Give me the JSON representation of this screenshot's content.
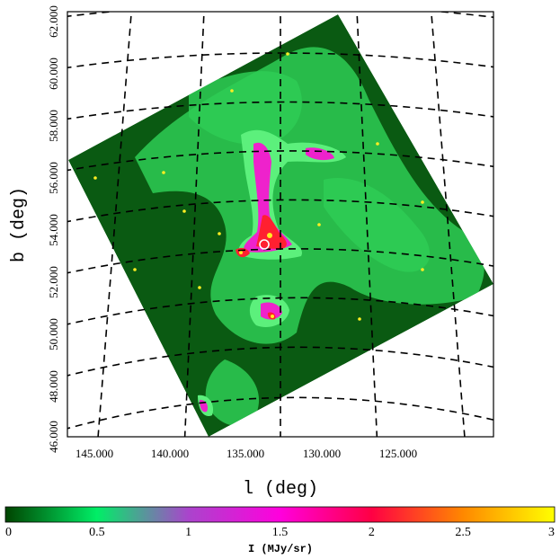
{
  "chart_data": {
    "type": "heatmap",
    "xlabel": "l (deg)",
    "ylabel": "b (deg)",
    "x_ticks": [
      "145.000",
      "140.000",
      "135.000",
      "130.000",
      "125.000"
    ],
    "y_ticks": [
      "46.000",
      "48.000",
      "50.000",
      "52.000",
      "54.000",
      "56.000",
      "58.000",
      "60.000",
      "62.000"
    ],
    "x_range": [
      147.5,
      122.5
    ],
    "y_range": [
      46,
      62.5
    ],
    "grid": true,
    "colorbar": {
      "label": "I (MJy/sr)",
      "ticks": [
        "0",
        "0.5",
        "1",
        "1.5",
        "2",
        "2.5",
        "3"
      ],
      "range": [
        0,
        3
      ],
      "stops": [
        {
          "value": 0,
          "color": "#004400"
        },
        {
          "value": 0.5,
          "color": "#00ee66"
        },
        {
          "value": 1,
          "color": "#aa44cc"
        },
        {
          "value": 1.5,
          "color": "#ff00dd"
        },
        {
          "value": 2,
          "color": "#ff0044"
        },
        {
          "value": 2.5,
          "color": "#ff8800"
        },
        {
          "value": 3,
          "color": "#ffff00"
        }
      ]
    },
    "map_colors": {
      "background": "#0a5a12",
      "filament": "#2ecc55",
      "bright": "#5cf07c",
      "core": "#ee22cc",
      "peak": "#ff2030",
      "hot": "#ffee22",
      "marker": "#ffffff"
    }
  }
}
